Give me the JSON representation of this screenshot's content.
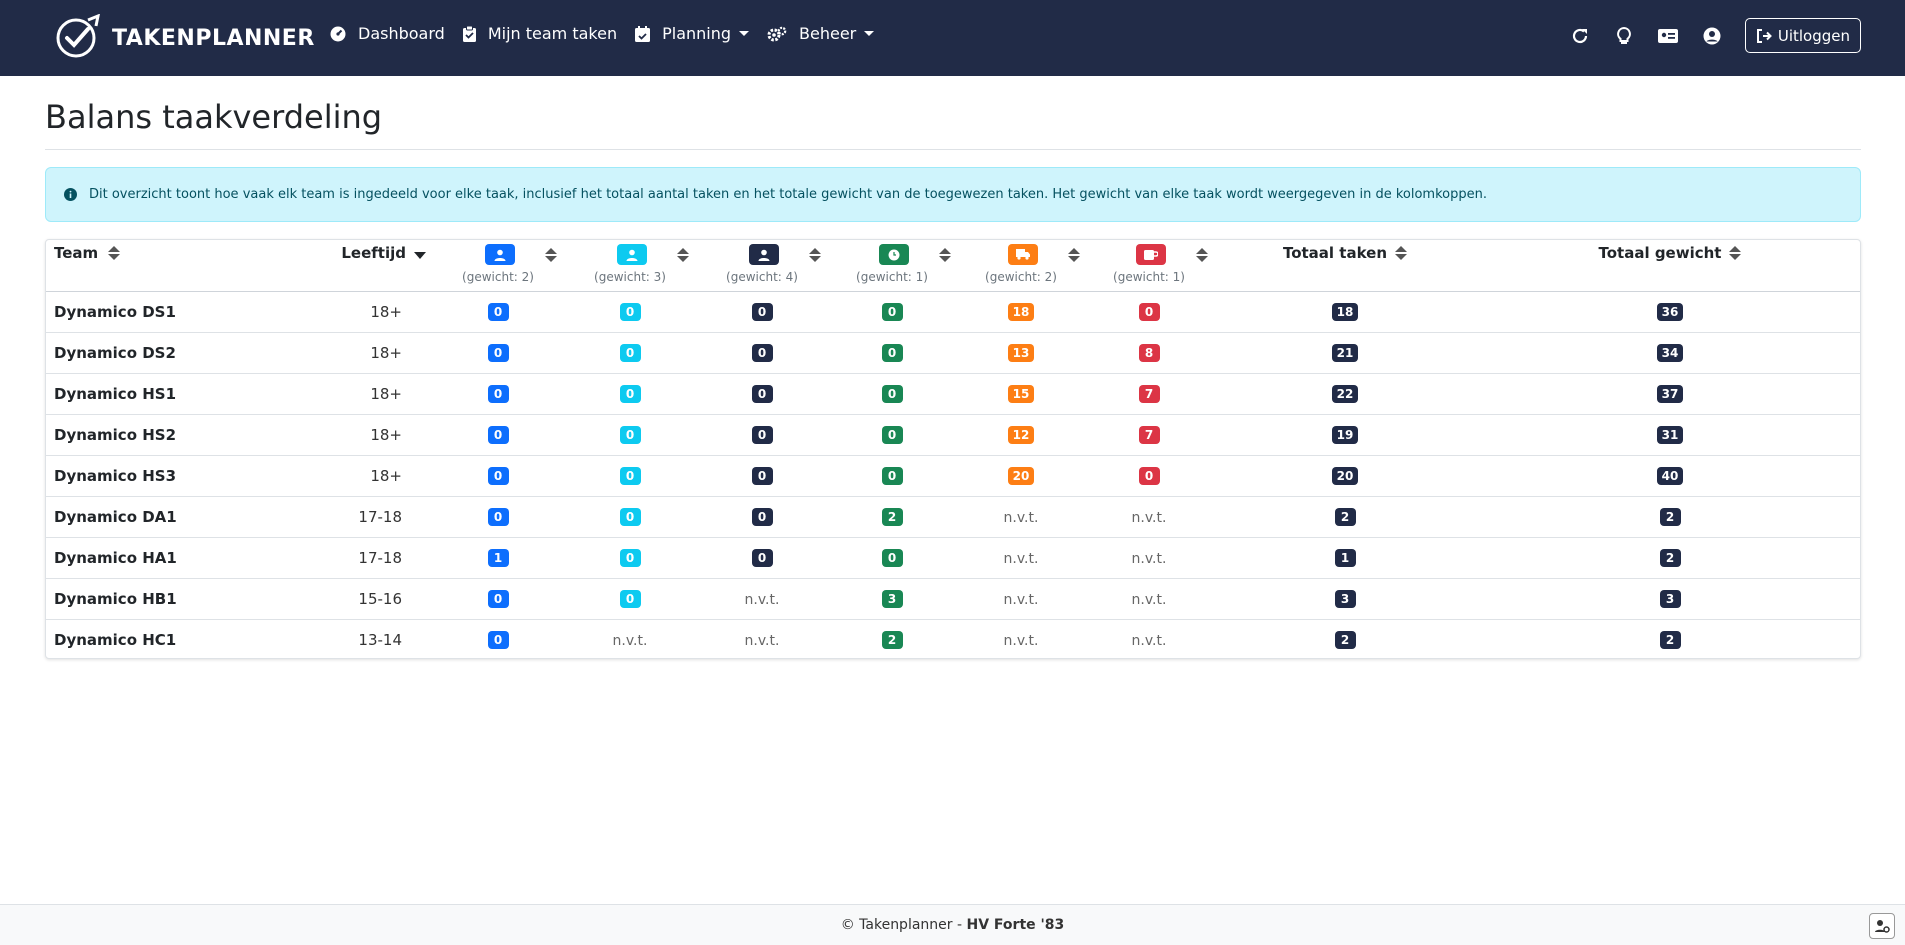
{
  "nav": {
    "brand": "TAKENPLANNER",
    "items": [
      {
        "label": "Dashboard",
        "icon": "dashboard-icon",
        "dropdown": false
      },
      {
        "label": "Mijn team taken",
        "icon": "clipboard-icon",
        "dropdown": false
      },
      {
        "label": "Planning",
        "icon": "calendar-check-icon",
        "dropdown": true
      },
      {
        "label": "Beheer",
        "icon": "gears-icon",
        "dropdown": true
      }
    ],
    "right_icons": [
      "refresh-icon",
      "lightbulb-icon",
      "id-card-icon",
      "user-circle-icon"
    ],
    "logout_label": "Uitloggen"
  },
  "page": {
    "title": "Balans taakverdeling",
    "info": "Dit overzicht toont hoe vaak elk team is ingedeeld voor elke taak, inclusief het totaal aantal taken en het totale gewicht van de toegewezen taken. Het gewicht van elke taak wordt weergegeven in de kolomkoppen."
  },
  "table": {
    "headers": {
      "team": "Team",
      "age": "Leeftijd",
      "total_tasks": "Totaal taken",
      "total_weight": "Totaal gewicht"
    },
    "tasks": [
      {
        "icon": "user-icon",
        "color": "#0d6efd",
        "weight": "(gewicht: 2)"
      },
      {
        "icon": "user-icon",
        "color": "#0dcaf0",
        "weight": "(gewicht: 3)"
      },
      {
        "icon": "user-icon",
        "color": "#212b47",
        "weight": "(gewicht: 4)"
      },
      {
        "icon": "clock-icon",
        "color": "#198754",
        "weight": "(gewicht: 1)"
      },
      {
        "icon": "truck-icon",
        "color": "#fd7e14",
        "weight": "(gewicht: 2)"
      },
      {
        "icon": "coffee-icon",
        "color": "#dc3545",
        "weight": "(gewicht: 1)"
      }
    ],
    "rows": [
      {
        "team": "Dynamico DS1",
        "age": "18+",
        "counts": [
          "0",
          "0",
          "0",
          "0",
          "18",
          "0"
        ],
        "total_tasks": "18",
        "total_weight": "36"
      },
      {
        "team": "Dynamico DS2",
        "age": "18+",
        "counts": [
          "0",
          "0",
          "0",
          "0",
          "13",
          "8"
        ],
        "total_tasks": "21",
        "total_weight": "34"
      },
      {
        "team": "Dynamico HS1",
        "age": "18+",
        "counts": [
          "0",
          "0",
          "0",
          "0",
          "15",
          "7"
        ],
        "total_tasks": "22",
        "total_weight": "37"
      },
      {
        "team": "Dynamico HS2",
        "age": "18+",
        "counts": [
          "0",
          "0",
          "0",
          "0",
          "12",
          "7"
        ],
        "total_tasks": "19",
        "total_weight": "31"
      },
      {
        "team": "Dynamico HS3",
        "age": "18+",
        "counts": [
          "0",
          "0",
          "0",
          "0",
          "20",
          "0"
        ],
        "total_tasks": "20",
        "total_weight": "40"
      },
      {
        "team": "Dynamico DA1",
        "age": "17-18",
        "counts": [
          "0",
          "0",
          "0",
          "2",
          "n.v.t.",
          "n.v.t."
        ],
        "total_tasks": "2",
        "total_weight": "2"
      },
      {
        "team": "Dynamico HA1",
        "age": "17-18",
        "counts": [
          "1",
          "0",
          "0",
          "0",
          "n.v.t.",
          "n.v.t."
        ],
        "total_tasks": "1",
        "total_weight": "2"
      },
      {
        "team": "Dynamico HB1",
        "age": "15-16",
        "counts": [
          "0",
          "0",
          "n.v.t.",
          "3",
          "n.v.t.",
          "n.v.t."
        ],
        "total_tasks": "3",
        "total_weight": "3"
      },
      {
        "team": "Dynamico HC1",
        "age": "13-14",
        "counts": [
          "0",
          "n.v.t.",
          "n.v.t.",
          "2",
          "n.v.t.",
          "n.v.t."
        ],
        "total_tasks": "2",
        "total_weight": "2"
      }
    ],
    "total_badge_color": "#212b47"
  },
  "footer": {
    "prefix": "© Takenplanner - ",
    "org": "HV Forte '83"
  }
}
